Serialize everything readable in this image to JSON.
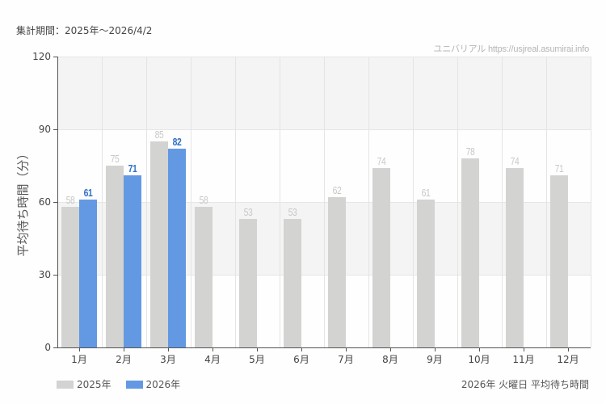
{
  "header": {
    "period": "集計期間：2025年～2026/4/2",
    "source": "ユニバリアル  https://usjreal.asumirai.info"
  },
  "footer": {
    "title": "2026年 火曜日 平均待ち時間"
  },
  "colors": {
    "series_2025": "#d3d3d1",
    "series_2026": "#6399e2",
    "label_2026": "#2f6fc8",
    "label_2025": "#c8c8c8"
  },
  "chart_data": {
    "type": "bar",
    "title": "2026年 火曜日 平均待ち時間",
    "subtitle": "集計期間：2025年～2026/4/2",
    "xlabel": "",
    "ylabel": "平均待ち時間（分）",
    "ylim": [
      0,
      120
    ],
    "yticks": [
      0,
      30,
      60,
      90,
      120
    ],
    "grid": true,
    "legend_position": "bottom-left",
    "categories": [
      "1月",
      "2月",
      "3月",
      "4月",
      "5月",
      "6月",
      "7月",
      "8月",
      "9月",
      "10月",
      "11月",
      "12月"
    ],
    "series": [
      {
        "name": "2025年",
        "color": "#d3d3d1",
        "values": [
          58,
          75,
          85,
          58,
          53,
          53,
          62,
          74,
          61,
          78,
          74,
          71
        ]
      },
      {
        "name": "2026年",
        "color": "#6399e2",
        "values": [
          61,
          71,
          82,
          null,
          null,
          null,
          null,
          null,
          null,
          null,
          null,
          null
        ]
      }
    ]
  }
}
